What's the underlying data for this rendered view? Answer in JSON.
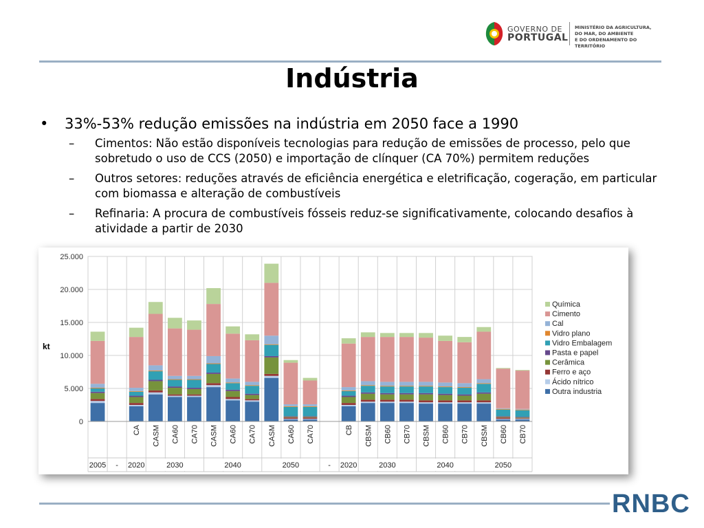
{
  "header": {
    "gov_line1": "GOVERNO DE",
    "gov_line2": "PORTUGAL",
    "ministry": [
      "MINISTÉRIO DA AGRICULTURA,",
      "DO MAR, DO AMBIENTE",
      "E DO ORDENAMENTO DO TERRITÓRIO"
    ]
  },
  "title": "Indústria",
  "bullets": {
    "main": "33%-53% redução emissões na indústria em 2050 face a 1990",
    "main_symbol": "•",
    "sub_symbol": "–",
    "subs": [
      "Cimentos: Não estão disponíveis tecnologias para redução de emissões de processo, pelo que sobretudo o uso de CCS (2050) e importação de clínquer (CA 70%) permitem reduções",
      "Outros setores: reduções através de eficiência energética e eletrificação, cogeração, em particular com biomassa e alteração de combustíveis",
      "Refinaria: A procura de combustíveis fósseis reduz-se significativamente, colocando desafios à atividade a partir de 2030"
    ]
  },
  "footer_logo": "RNBC",
  "colors": {
    "Química": "#b9d39a",
    "Cimento": "#d99694",
    "Cal": "#95b3d7",
    "Vidro plano": "#e0872f",
    "Vidro Embalagem": "#31a0b4",
    "Pasta e papel": "#66498c",
    "Cerâmica": "#77933c",
    "Ferro e aço": "#953735",
    "Ácido nítrico": "#b7cde9",
    "Outra industria": "#3e6fa7"
  },
  "chart_data": {
    "type": "bar",
    "stacked": true,
    "ylabel": "kt",
    "ylim": [
      0,
      25000
    ],
    "yticks": [
      "0",
      "5.000",
      "10.000",
      "15.000",
      "20.000",
      "25.000"
    ],
    "grid": true,
    "legend_position": "right",
    "legend": [
      "Química",
      "Cimento",
      "Cal",
      "Vidro plano",
      "Vidro Embalagem",
      "Pasta e papel",
      "Cerâmica",
      "Ferro e aço",
      "Ácido nítrico",
      "Outra industria"
    ],
    "slots": [
      "",
      "",
      "CA",
      "CASM",
      "CA60",
      "CA70",
      "CASM",
      "CA60",
      "CA70",
      "CASM",
      "CA60",
      "CA70",
      "",
      "CB",
      "CBSM",
      "CB60",
      "CB70",
      "CBSM",
      "CB60",
      "CB70",
      "CBSM",
      "CB60",
      "CB70"
    ],
    "year_labels": [
      {
        "label": "2005",
        "from": 0,
        "to": 0
      },
      {
        "label": "-",
        "from": 1,
        "to": 1
      },
      {
        "label": "2020",
        "from": 2,
        "to": 2
      },
      {
        "label": "2030",
        "from": 3,
        "to": 5
      },
      {
        "label": "2040",
        "from": 6,
        "to": 8
      },
      {
        "label": "2050",
        "from": 9,
        "to": 11
      },
      {
        "label": "-",
        "from": 12,
        "to": 12
      },
      {
        "label": "2020",
        "from": 13,
        "to": 13
      },
      {
        "label": "2030",
        "from": 14,
        "to": 16
      },
      {
        "label": "2040",
        "from": 17,
        "to": 19
      },
      {
        "label": "2050",
        "from": 20,
        "to": 22
      }
    ],
    "series": [
      {
        "name": "Outra industria",
        "values": [
          2800,
          null,
          2300,
          4100,
          3700,
          3700,
          5200,
          3200,
          3000,
          6600,
          300,
          300,
          null,
          2300,
          2800,
          2800,
          2800,
          2700,
          2700,
          2700,
          2700,
          300,
          300
        ]
      },
      {
        "name": "Ácido nítrico",
        "values": [
          300,
          null,
          200,
          300,
          200,
          200,
          300,
          200,
          200,
          300,
          100,
          100,
          null,
          200,
          200,
          200,
          200,
          200,
          200,
          200,
          200,
          100,
          100
        ]
      },
      {
        "name": "Ferro e aço",
        "values": [
          300,
          null,
          300,
          300,
          200,
          200,
          300,
          300,
          200,
          300,
          200,
          200,
          null,
          300,
          300,
          300,
          300,
          300,
          300,
          300,
          300,
          200,
          100
        ]
      },
      {
        "name": "Cerâmica",
        "values": [
          900,
          null,
          900,
          1400,
          1000,
          800,
          1400,
          900,
          600,
          2500,
          100,
          100,
          null,
          900,
          900,
          800,
          800,
          900,
          800,
          700,
          1000,
          100,
          100
        ]
      },
      {
        "name": "Pasta e papel",
        "values": [
          200,
          null,
          200,
          200,
          200,
          200,
          200,
          200,
          200,
          200,
          100,
          100,
          null,
          200,
          200,
          200,
          200,
          200,
          200,
          200,
          200,
          100,
          100
        ]
      },
      {
        "name": "Vidro Embalagem",
        "values": [
          500,
          null,
          600,
          1300,
          1000,
          1200,
          1300,
          1000,
          1200,
          1700,
          1400,
          1400,
          null,
          700,
          1000,
          1000,
          1000,
          1000,
          1000,
          1000,
          1300,
          1000,
          1000
        ]
      },
      {
        "name": "Vidro plano",
        "values": [
          100,
          null,
          100,
          100,
          100,
          100,
          100,
          100,
          100,
          100,
          100,
          100,
          null,
          100,
          100,
          100,
          100,
          100,
          100,
          100,
          100,
          100,
          100
        ]
      },
      {
        "name": "Cal",
        "values": [
          600,
          null,
          500,
          800,
          500,
          500,
          1100,
          600,
          500,
          1300,
          300,
          300,
          null,
          500,
          600,
          600,
          600,
          600,
          600,
          600,
          600,
          100,
          100
        ]
      },
      {
        "name": "Cimento",
        "values": [
          6500,
          null,
          7700,
          7800,
          7200,
          7000,
          7900,
          6800,
          6300,
          8000,
          6300,
          3600,
          null,
          6600,
          6700,
          6800,
          6800,
          6700,
          6300,
          6200,
          7200,
          6000,
          5800
        ]
      },
      {
        "name": "Química",
        "values": [
          1400,
          null,
          1400,
          1800,
          1600,
          1400,
          2400,
          1100,
          900,
          2900,
          400,
          400,
          null,
          800,
          700,
          600,
          600,
          700,
          800,
          800,
          700,
          100,
          100
        ]
      }
    ]
  }
}
